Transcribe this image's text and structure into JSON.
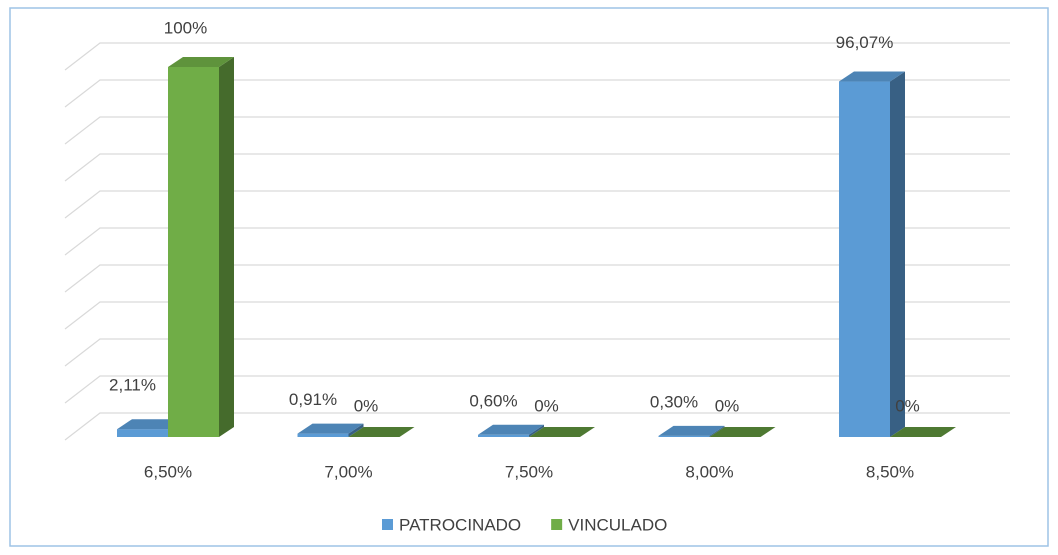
{
  "chart_data": {
    "type": "bar3d",
    "categories": [
      "6,50%",
      "7,00%",
      "7,50%",
      "8,00%",
      "8,50%"
    ],
    "series": [
      {
        "name": "PATROCINADO",
        "color": "#5b9bd5",
        "values": [
          2.11,
          0.91,
          0.6,
          0.3,
          96.07
        ],
        "value_labels": [
          "2,11%",
          "0,91%",
          "0,60%",
          "0,30%",
          "96,07%"
        ]
      },
      {
        "name": "VINCULADO",
        "color": "#70ad47",
        "values": [
          100,
          0,
          0,
          0,
          0
        ],
        "value_labels": [
          "100%",
          "0%",
          "0%",
          "0%",
          "0%"
        ]
      }
    ],
    "ylim": [
      0,
      100
    ],
    "yticks": [
      0,
      10,
      20,
      30,
      40,
      50,
      60,
      70,
      80,
      90,
      100
    ],
    "grid": true,
    "legend": "bottom"
  }
}
